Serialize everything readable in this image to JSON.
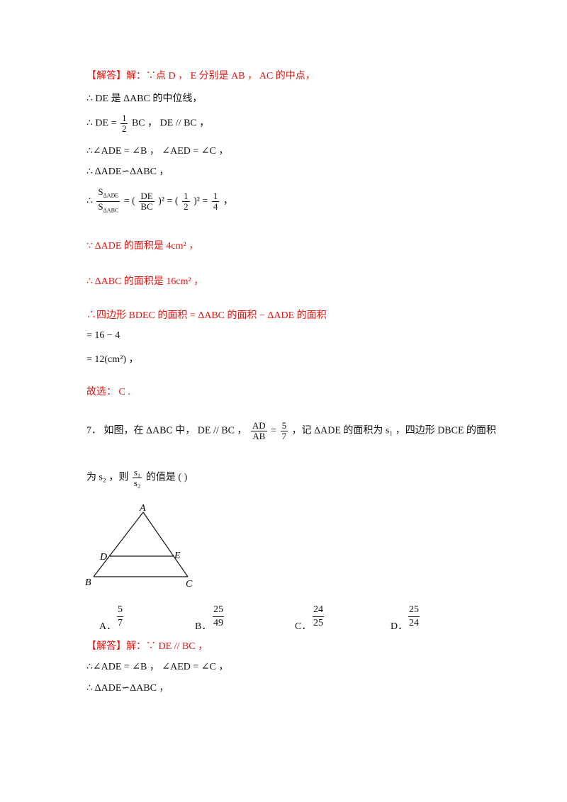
{
  "lines": [
    {
      "id": "l1",
      "text": "【解答】解：∵点 D ， E 分别是 AB ， AC 的中点，",
      "color": "red"
    },
    {
      "id": "l2",
      "text": "∴ DE 是 ΔABC 的中位线，",
      "color": "mixed"
    },
    {
      "id": "l4",
      "text": "∴∠ADE = ∠B ， ∠AED = ∠C ，",
      "color": "black"
    },
    {
      "id": "l5",
      "text": "∴ ΔADE∽ΔABC ，",
      "color": "black"
    },
    {
      "id": "l7",
      "text": "∵ ΔADE 的面积是 4cm² ，",
      "color": "mixed"
    },
    {
      "id": "l8",
      "text": "∴ ΔABC 的面积是 16cm² ，",
      "color": "mixed"
    },
    {
      "id": "l9",
      "text": "∴四边形 BDEC 的面积 = ΔABC 的面积 − ΔADE 的面积",
      "color": "mixed"
    },
    {
      "id": "l10",
      "text": "= 16 − 4",
      "color": "black"
    },
    {
      "id": "l11",
      "text": "= 12(cm²) ，",
      "color": "black"
    },
    {
      "id": "l12",
      "text": "故选： C .",
      "color": "red"
    }
  ],
  "eq3": {
    "lhs": "∴ DE =",
    "num": "1",
    "den": "2",
    "rhs": "BC ， DE // BC ，"
  },
  "eq6": {
    "lhs": "∴",
    "area_num": "S",
    "area_num_sub": "ΔADE",
    "area_den": "S",
    "area_den_sub": "ΔABC",
    "eq1": "= (",
    "f1_num": "DE",
    "f1_den": "BC",
    "eq2": ")² = (",
    "f2_num": "1",
    "f2_den": "2",
    "eq3": ")² =",
    "f3_num": "1",
    "f3_den": "4",
    "end": "，"
  },
  "question": {
    "number": "7．",
    "part1": "如图，在 ΔABC 中， DE // BC ，",
    "ratio_num": "AD",
    "ratio_den": "AB",
    "ratio_eq": "=",
    "ratio_val_num": "5",
    "ratio_val_den": "7",
    "part2": "，记 ΔADE 的面积为 s₁ ，四边形 DBCE 的面积",
    "part3_pre": "为 s₂ ，则",
    "s_num": "s₁",
    "s_den": "s₂",
    "part3_post": "的值是 (      )"
  },
  "figure_labels": {
    "A": "A",
    "B": "B",
    "C": "C",
    "D": "D",
    "E": "E"
  },
  "options": [
    {
      "letter": "A．",
      "num": "5",
      "den": "7"
    },
    {
      "letter": "B．",
      "num": "25",
      "den": "49"
    },
    {
      "letter": "C．",
      "num": "24",
      "den": "25"
    },
    {
      "letter": "D．",
      "num": "25",
      "den": "24"
    }
  ],
  "answer2": [
    {
      "id": "a1",
      "text": "【解答】解：∵ DE // BC ，",
      "color": "mixed"
    },
    {
      "id": "a2",
      "text": "∴∠ADE = ∠B ， ∠AED = ∠C ，",
      "color": "black"
    },
    {
      "id": "a3",
      "text": "∴ ΔADE∽ΔABC ，",
      "color": "black"
    }
  ]
}
